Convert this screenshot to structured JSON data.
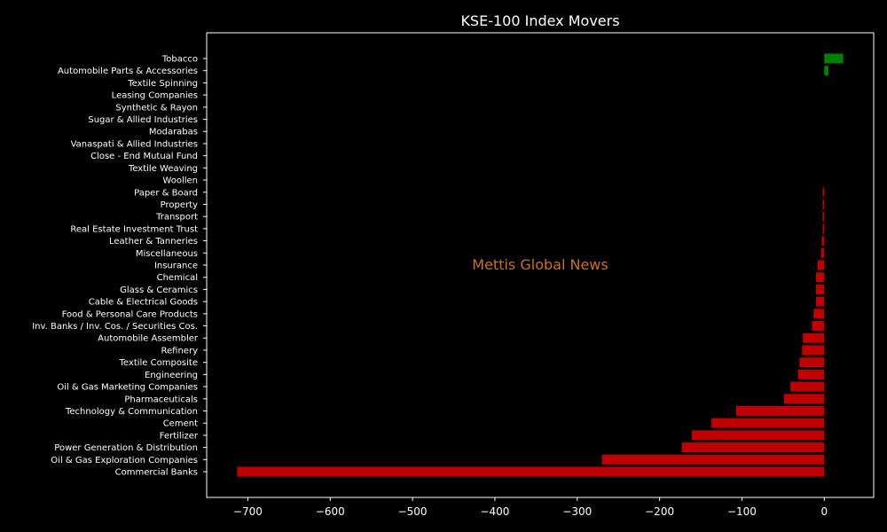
{
  "chart_data": {
    "type": "bar",
    "orientation": "horizontal",
    "title": "KSE-100 Index Movers",
    "watermark": "Mettis Global News",
    "xlim": [
      -750,
      60
    ],
    "xticks": [
      -700,
      -600,
      -500,
      -400,
      -300,
      -200,
      -100,
      0
    ],
    "xtick_labels": [
      "−700",
      "−600",
      "−500",
      "−400",
      "−300",
      "−200",
      "−100",
      "0"
    ],
    "grid": false,
    "positive_color": "#008000",
    "negative_color": "#c00000",
    "background_color": "#000000",
    "categories": [
      "Tobacco",
      "Automobile Parts & Accessories",
      "Textile Spinning",
      "Leasing Companies",
      "Synthetic & Rayon",
      "Sugar & Allied Industries",
      "Modarabas",
      "Vanaspati & Allied Industries",
      "Close - End Mutual Fund",
      "Textile Weaving",
      "Woollen",
      "Paper & Board",
      "Property",
      "Transport",
      "Real Estate Investment Trust",
      "Leather & Tanneries",
      "Miscellaneous",
      "Insurance",
      "Chemical",
      "Glass & Ceramics",
      "Cable & Electrical Goods",
      "Food & Personal Care Products",
      "Inv. Banks / Inv. Cos. / Securities Cos.",
      "Automobile Assembler",
      "Refinery",
      "Textile Composite",
      "Engineering",
      "Oil & Gas Marketing Companies",
      "Pharmaceuticals",
      "Technology & Communication",
      "Cement",
      "Fertilizer",
      "Power Generation & Distribution",
      "Oil & Gas Exploration Companies",
      "Commercial Banks"
    ],
    "values": [
      23,
      5,
      0,
      0,
      0,
      0,
      0,
      0,
      0,
      0,
      0,
      -2,
      -2,
      -2,
      -2,
      -3,
      -4,
      -8,
      -10,
      -10,
      -10,
      -13,
      -15,
      -26,
      -27,
      -30,
      -32,
      -41,
      -49,
      -107,
      -137,
      -161,
      -173,
      -270,
      -713
    ]
  }
}
